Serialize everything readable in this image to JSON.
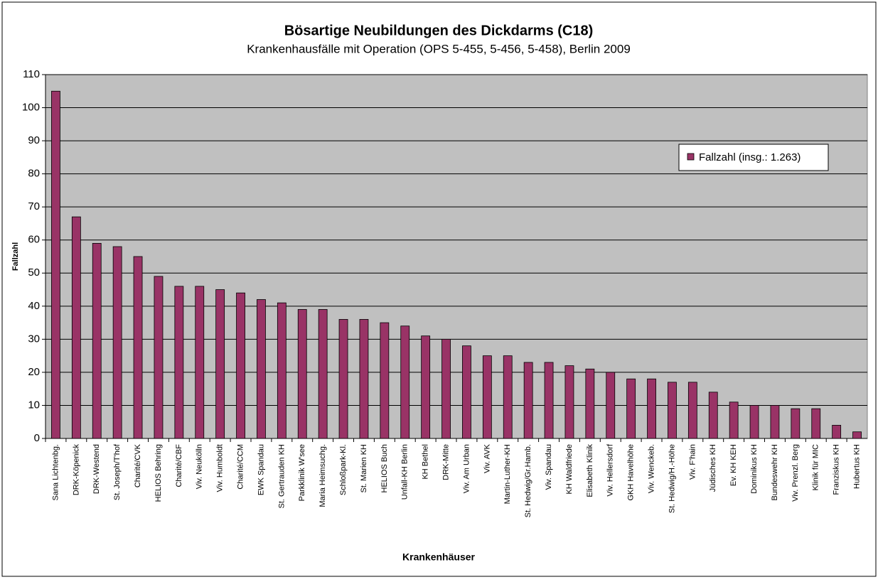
{
  "chart_data": {
    "type": "bar",
    "title": "Bösartige Neubildungen des Dickdarms (C18)",
    "subtitle": "Krankenhausfälle mit Operation (OPS 5-455, 5-456, 5-458), Berlin 2009",
    "x_label": "Krankenhäuser",
    "y_label": "Fallzahl",
    "categories": [
      "Sana Lichtenbg.",
      "DRK-Köpenick",
      "DRK-Westend",
      "St. Joseph/T'hof",
      "Charité/CVK",
      "HELIOS Behring",
      "Charité/CBF",
      "Viv. Neukölln",
      "Viv. Humboldt",
      "Charité/CCM",
      "EWK Spandau",
      "St. Gertrauden KH",
      "Parkklinik W'see",
      "Maria Heimsuchg.",
      "Schloßpark-Kl.",
      "St. Marien KH",
      "HELIOS Buch",
      "Unfall-KH Berlin",
      "KH Bethel",
      "DRK-Mitte",
      "Viv. Am Urban",
      "Viv. AVK",
      "Martin-Luther-KH",
      "St. Hedwig/Gr.Hamb.",
      "Viv. Spandau",
      "KH Waldfriede",
      "Elisabeth Klinik",
      "Viv. Hellersdorf",
      "GKH Havelhöhe",
      "Viv. Wenckeb.",
      "St. Hedwig/H.-Höhe",
      "Viv. F'hain",
      "Jüdisches KH",
      "Ev. KH KEH",
      "Dominikus KH",
      "Bundeswehr KH",
      "Viv. Prenzl. Berg",
      "Klinik für MIC",
      "Franziskus KH",
      "Hubertus KH"
    ],
    "series": [
      {
        "name": "Fallzahl (insg.: 1.263)",
        "color": "#993366",
        "values": [
          105,
          67,
          59,
          58,
          55,
          49,
          46,
          46,
          45,
          44,
          42,
          41,
          39,
          39,
          36,
          36,
          35,
          34,
          31,
          30,
          28,
          25,
          25,
          23,
          23,
          22,
          21,
          20,
          18,
          18,
          17,
          17,
          14,
          11,
          10,
          10,
          9,
          9,
          4,
          2
        ]
      }
    ],
    "ylim": [
      0,
      110
    ],
    "yticks": [
      0,
      10,
      20,
      30,
      40,
      50,
      60,
      70,
      80,
      90,
      100,
      110
    ],
    "grid": true,
    "legend": "right",
    "plot_background": "#c0c0c0"
  }
}
